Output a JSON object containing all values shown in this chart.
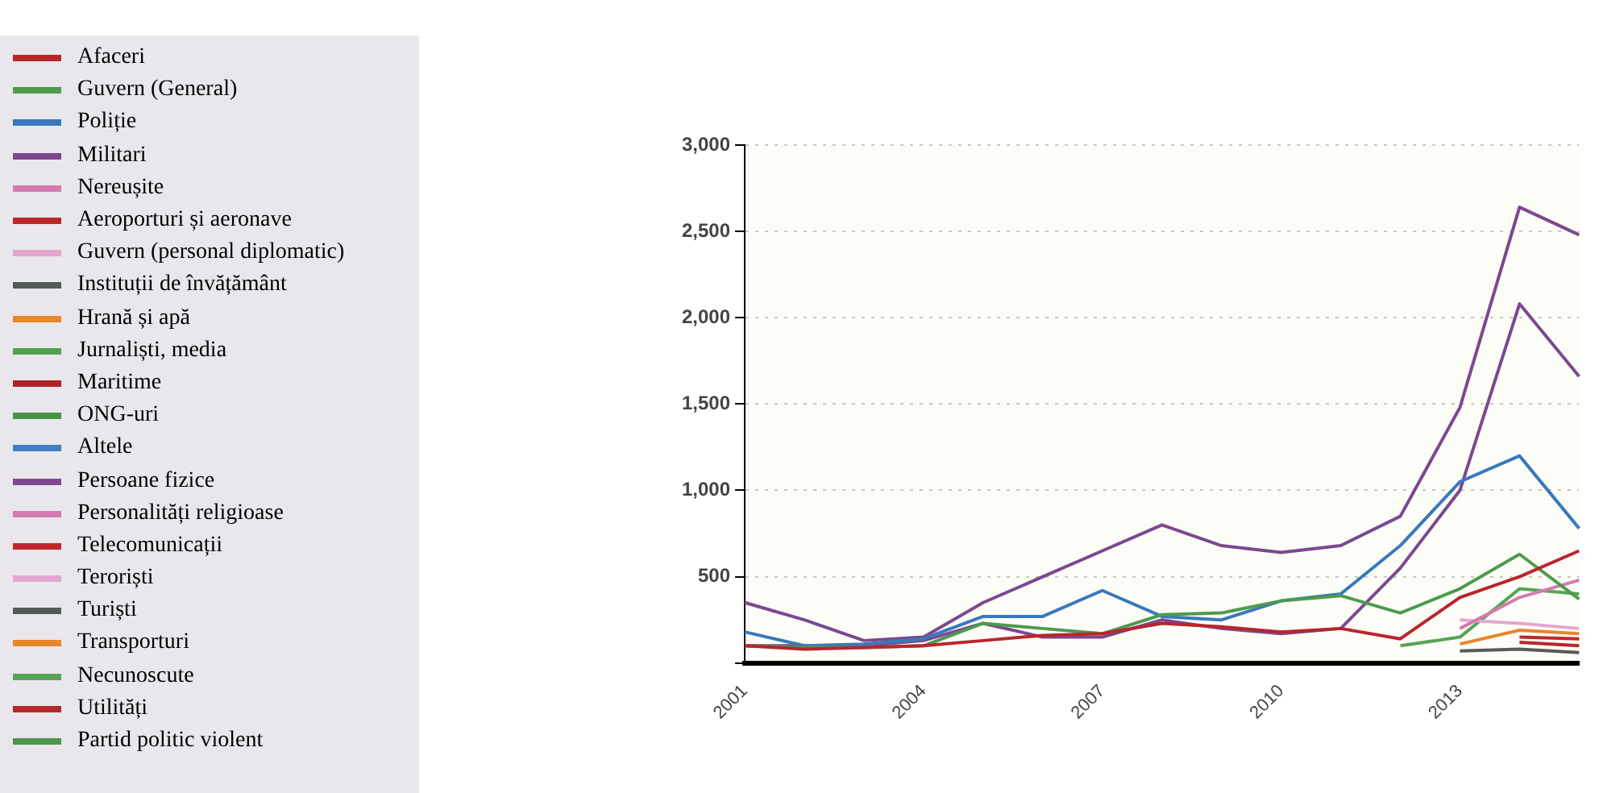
{
  "chart_data": {
    "type": "line",
    "categories": [
      "2001",
      null,
      null,
      "2004",
      null,
      null,
      "2007",
      null,
      null,
      "2010",
      null,
      null,
      "2013",
      null,
      null
    ],
    "ylim": [
      0,
      3000
    ],
    "yticks": [
      {
        "value": 0,
        "label": null
      },
      500,
      {
        "value": 1000,
        "label": "1,000"
      },
      {
        "value": 1500,
        "label": "1,500"
      },
      {
        "value": 2000,
        "label": "2,000"
      },
      {
        "value": 2500,
        "label": "2,500"
      },
      {
        "value": 3000,
        "label": "3,000"
      }
    ],
    "grid": "y",
    "legend": "left",
    "series": [
      {
        "name": "Afaceri",
        "color": "#b8262c",
        "values": [
          100,
          80,
          90,
          100,
          130,
          160,
          170,
          230,
          210,
          180,
          200,
          140,
          380,
          500,
          650
        ]
      },
      {
        "name": "Guvern (General)",
        "color": "#4e9a4e",
        "values": [
          100,
          90,
          90,
          100,
          230,
          200,
          170,
          280,
          290,
          360,
          390,
          290,
          430,
          630,
          370
        ]
      },
      {
        "name": "Poliție",
        "color": "#3a78bc",
        "values": [
          180,
          100,
          110,
          140,
          270,
          270,
          420,
          270,
          250,
          360,
          400,
          680,
          1050,
          1200,
          780
        ]
      },
      {
        "name": "Militari",
        "color": "#7d4890",
        "values": [
          100,
          100,
          100,
          130,
          230,
          150,
          150,
          250,
          200,
          170,
          200,
          550,
          1000,
          2080,
          1660
        ]
      },
      {
        "name": "Nereușite",
        "color": "#d47ab0",
        "values": [
          null,
          null,
          null,
          null,
          null,
          null,
          null,
          null,
          null,
          null,
          null,
          null,
          200,
          380,
          480
        ]
      },
      {
        "name": "Aeroporturi și aeronave",
        "color": "#c0272d",
        "values": [
          null,
          null,
          null,
          null,
          null,
          null,
          null,
          null,
          null,
          null,
          null,
          null,
          null,
          null,
          null
        ]
      },
      {
        "name": "Guvern (personal diplomatic)",
        "color": "#e4a6cf",
        "values": [
          null,
          null,
          null,
          null,
          null,
          null,
          null,
          null,
          null,
          null,
          null,
          null,
          null,
          null,
          null
        ]
      },
      {
        "name": "Instituții de învățământ",
        "color": "#555b55",
        "values": [
          null,
          null,
          null,
          null,
          null,
          null,
          null,
          null,
          null,
          null,
          null,
          null,
          70,
          80,
          60
        ]
      },
      {
        "name": "Hrană și apă",
        "color": "#e8862a",
        "values": [
          null,
          null,
          null,
          null,
          null,
          null,
          null,
          null,
          null,
          null,
          null,
          null,
          null,
          null,
          null
        ]
      },
      {
        "name": "Jurnaliști, media",
        "color": "#52a052",
        "values": [
          null,
          null,
          null,
          null,
          null,
          null,
          null,
          null,
          null,
          null,
          null,
          null,
          null,
          null,
          null
        ]
      },
      {
        "name": "Maritime",
        "color": "#b02028",
        "values": [
          null,
          null,
          null,
          null,
          null,
          null,
          null,
          null,
          null,
          null,
          null,
          null,
          null,
          null,
          null
        ]
      },
      {
        "name": "ONG-uri",
        "color": "#489448",
        "values": [
          null,
          null,
          null,
          null,
          null,
          null,
          null,
          null,
          null,
          null,
          null,
          null,
          null,
          null,
          null
        ]
      },
      {
        "name": "Altele",
        "color": "#3f80c4",
        "values": [
          null,
          null,
          null,
          null,
          null,
          null,
          null,
          null,
          null,
          null,
          null,
          null,
          null,
          null,
          null
        ]
      },
      {
        "name": "Persoane fizice",
        "color": "#7d4890",
        "values": [
          350,
          250,
          130,
          150,
          350,
          500,
          650,
          800,
          680,
          640,
          680,
          850,
          1480,
          2640,
          2480
        ]
      },
      {
        "name": "Personalități religioase",
        "color": "#d47ab0",
        "values": [
          null,
          null,
          null,
          null,
          null,
          null,
          null,
          null,
          null,
          null,
          null,
          null,
          null,
          null,
          null
        ]
      },
      {
        "name": "Telecomunicații",
        "color": "#c0272d",
        "values": [
          null,
          null,
          null,
          null,
          null,
          null,
          null,
          null,
          null,
          null,
          null,
          null,
          null,
          150,
          140
        ]
      },
      {
        "name": "Teroriști",
        "color": "#e4a6cf",
        "values": [
          null,
          null,
          null,
          null,
          null,
          null,
          null,
          null,
          null,
          null,
          null,
          null,
          250,
          230,
          200
        ]
      },
      {
        "name": "Turiști",
        "color": "#555b55",
        "values": [
          null,
          null,
          null,
          null,
          null,
          null,
          null,
          null,
          null,
          null,
          null,
          null,
          null,
          null,
          null
        ]
      },
      {
        "name": "Transporturi",
        "color": "#e8862a",
        "values": [
          null,
          null,
          null,
          null,
          null,
          null,
          null,
          null,
          null,
          null,
          null,
          null,
          110,
          190,
          170
        ]
      },
      {
        "name": "Necunoscute",
        "color": "#56a456",
        "values": [
          null,
          null,
          null,
          null,
          null,
          null,
          null,
          null,
          null,
          null,
          null,
          100,
          150,
          430,
          400
        ]
      },
      {
        "name": "Utilități",
        "color": "#b8262c",
        "values": [
          null,
          null,
          null,
          null,
          null,
          null,
          null,
          null,
          null,
          null,
          null,
          null,
          null,
          120,
          100
        ]
      },
      {
        "name": "Partid politic violent",
        "color": "#4a984a",
        "values": [
          null,
          null,
          null,
          null,
          null,
          null,
          null,
          null,
          null,
          null,
          null,
          null,
          null,
          null,
          null
        ]
      }
    ]
  }
}
